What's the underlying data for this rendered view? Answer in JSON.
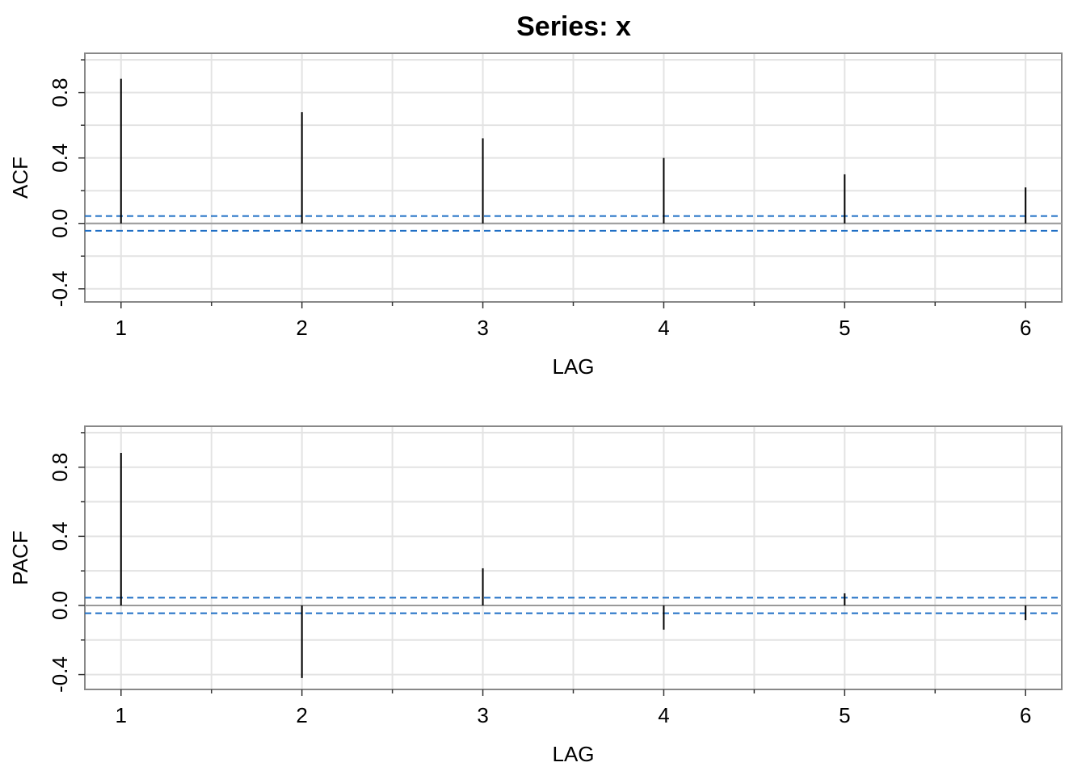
{
  "chart_data": [
    {
      "type": "spike",
      "title": "Series:  x",
      "ylabel": "ACF",
      "xlabel": "LAG",
      "x": [
        1,
        2,
        3,
        4,
        5,
        6
      ],
      "values": [
        0.884,
        0.68,
        0.52,
        0.4,
        0.3,
        0.22
      ],
      "color": "#000000",
      "xlim": [
        0.8,
        6.2
      ],
      "xticks": [
        1,
        2,
        3,
        4,
        5,
        6
      ],
      "xminorticks": [
        1.5,
        2.5,
        3.5,
        4.5,
        5.5
      ],
      "ylim": [
        -0.48,
        1.04
      ],
      "yticks": [
        -0.4,
        {
          "value": 0,
          "label": "0.0"
        },
        0.4,
        0.8
      ],
      "yminorticks": [
        -0.2,
        0.2,
        0.6,
        1.0
      ],
      "conf_limits": [
        0.045,
        -0.045
      ],
      "conf_color": "#1f6fc5",
      "grid": true
    },
    {
      "type": "spike",
      "ylabel": "PACF",
      "xlabel": "LAG",
      "x": [
        1,
        2,
        3,
        4,
        5,
        6
      ],
      "values": [
        0.883,
        -0.42,
        0.215,
        -0.14,
        0.07,
        -0.085
      ],
      "color": "#000000",
      "xlim": [
        0.8,
        6.2
      ],
      "xticks": [
        1,
        2,
        3,
        4,
        5,
        6
      ],
      "xminorticks": [
        1.5,
        2.5,
        3.5,
        4.5,
        5.5
      ],
      "ylim": [
        -0.486,
        1.037
      ],
      "yticks": [
        -0.4,
        {
          "value": 0,
          "label": "0.0"
        },
        0.4,
        0.8
      ],
      "yminorticks": [
        -0.2,
        0.2,
        0.6,
        1.0
      ],
      "conf_limits": [
        0.045,
        -0.045
      ],
      "conf_color": "#1f6fc5",
      "grid": true
    }
  ]
}
